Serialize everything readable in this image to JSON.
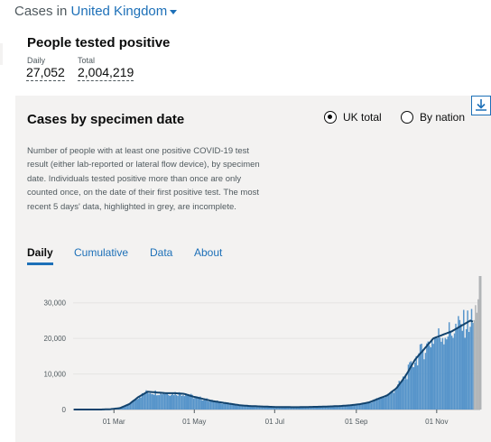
{
  "header": {
    "prefix": "Cases in",
    "place": "United Kingdom"
  },
  "summary": {
    "title": "People tested positive",
    "metrics": [
      {
        "label": "Daily",
        "value": "27,052"
      },
      {
        "label": "Total",
        "value": "2,004,219"
      }
    ]
  },
  "card": {
    "title": "Cases by specimen date",
    "radio_options": [
      {
        "label": "UK total",
        "selected": true
      },
      {
        "label": "By nation",
        "selected": false
      }
    ],
    "description": "Number of people with at least one positive COVID-19 test result (either lab-reported or lateral flow device), by specimen date. Individuals tested positive more than once are only counted once, on the date of their first positive test. The most recent 5 days' data, highlighted in grey, are incomplete.",
    "tabs": [
      "Daily",
      "Cumulative",
      "Data",
      "About"
    ],
    "active_tab": "Daily"
  },
  "colors": {
    "bar": "#5694ca",
    "avg_line": "#12436d",
    "incomplete": "#b1b4b6",
    "link": "#1d70b8"
  },
  "chart_data": {
    "type": "bar",
    "x_start": "2020-01-30",
    "x_end": "2020-12-04",
    "x_ticks": [
      "01 Mar",
      "01 May",
      "01 Jul",
      "01 Sep",
      "01 Nov"
    ],
    "y_ticks": [
      "0",
      "10,000",
      "20,000",
      "30,000"
    ],
    "ylim": [
      0,
      35000
    ],
    "incomplete_days": 5,
    "weekly_values": [
      0,
      0,
      0,
      0,
      100,
      400,
      1500,
      3500,
      5000,
      4800,
      4600,
      4600,
      4400,
      3600,
      3000,
      2400,
      2000,
      1600,
      1200,
      1000,
      900,
      800,
      700,
      700,
      650,
      700,
      750,
      800,
      900,
      1000,
      1200,
      1500,
      2000,
      3000,
      4000,
      6000,
      9500,
      14000,
      17000,
      20000,
      21000,
      22000,
      23500,
      25000,
      24000,
      20000,
      16000,
      14500,
      17500,
      22000,
      24500
    ],
    "series": [
      {
        "name": "Daily",
        "type": "bar"
      },
      {
        "name": "7-day average",
        "type": "line"
      }
    ]
  }
}
